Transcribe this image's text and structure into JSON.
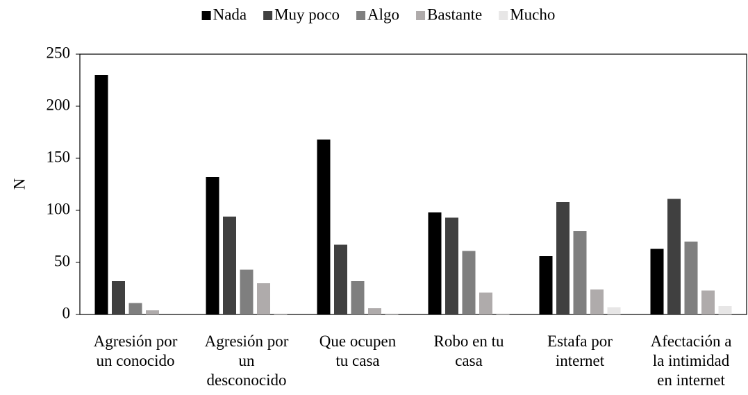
{
  "chart_data": {
    "type": "bar",
    "categories": [
      "Agresión por\nun conocido",
      "Agresión por\nun\ndesconocido",
      "Que ocupen\ntu casa",
      "Robo en tu\ncasa",
      "Estafa por\ninternet",
      "Afectación a\nla intimidad\nen internet"
    ],
    "series": [
      {
        "name": "Nada",
        "color": "#000000",
        "values": [
          230,
          132,
          168,
          98,
          56,
          63
        ]
      },
      {
        "name": "Muy poco",
        "color": "#404040",
        "values": [
          32,
          94,
          67,
          93,
          108,
          111
        ]
      },
      {
        "name": "Algo",
        "color": "#7f7f7f",
        "values": [
          11,
          43,
          32,
          61,
          80,
          70
        ]
      },
      {
        "name": "Bastante",
        "color": "#afabab",
        "values": [
          4,
          30,
          6,
          21,
          24,
          23
        ]
      },
      {
        "name": "Mucho",
        "color": "#e7e6e6",
        "values": [
          0,
          1,
          1,
          1,
          7,
          8
        ]
      }
    ],
    "y_label": "N",
    "ylim": [
      0,
      250
    ],
    "yticks": [
      0,
      50,
      100,
      150,
      200,
      250
    ],
    "grid": false,
    "legend": "top"
  }
}
